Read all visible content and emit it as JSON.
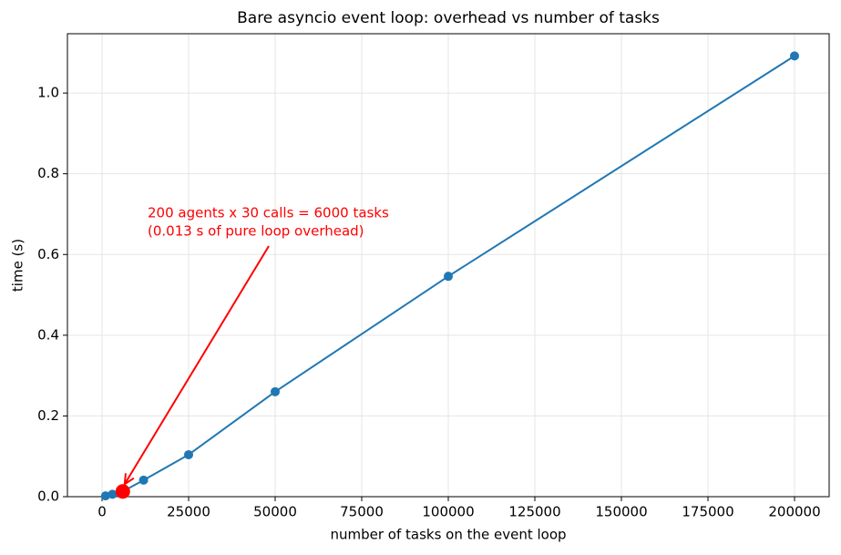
{
  "chart_data": {
    "type": "line",
    "title": "Bare asyncio event loop: overhead vs number of tasks",
    "xlabel": "number of tasks on the event loop",
    "ylabel": "time (s)",
    "series": [
      {
        "color": "#1f77b4",
        "x": [
          1000,
          3000,
          6000,
          12000,
          25000,
          50000,
          100000,
          200000
        ],
        "values": [
          0.002,
          0.006,
          0.013,
          0.041,
          0.104,
          0.26,
          0.546,
          1.092
        ]
      }
    ],
    "highlight": {
      "x": 6000,
      "y": 0.013,
      "color": "#ff0000"
    },
    "annotation": [
      "200 agents x 30 calls = 6000 tasks",
      "(0.013 s of pure loop overhead)"
    ],
    "xlim": [
      -10000,
      210000
    ],
    "ylim": [
      0,
      1.147
    ],
    "xticks": [
      0,
      25000,
      50000,
      75000,
      100000,
      125000,
      150000,
      175000,
      200000
    ],
    "yticks": [
      {
        "value": 0,
        "label": "0.0"
      },
      0.2,
      0.4,
      0.6,
      0.8,
      {
        "value": 1,
        "label": "1.0"
      }
    ],
    "grid": true
  }
}
